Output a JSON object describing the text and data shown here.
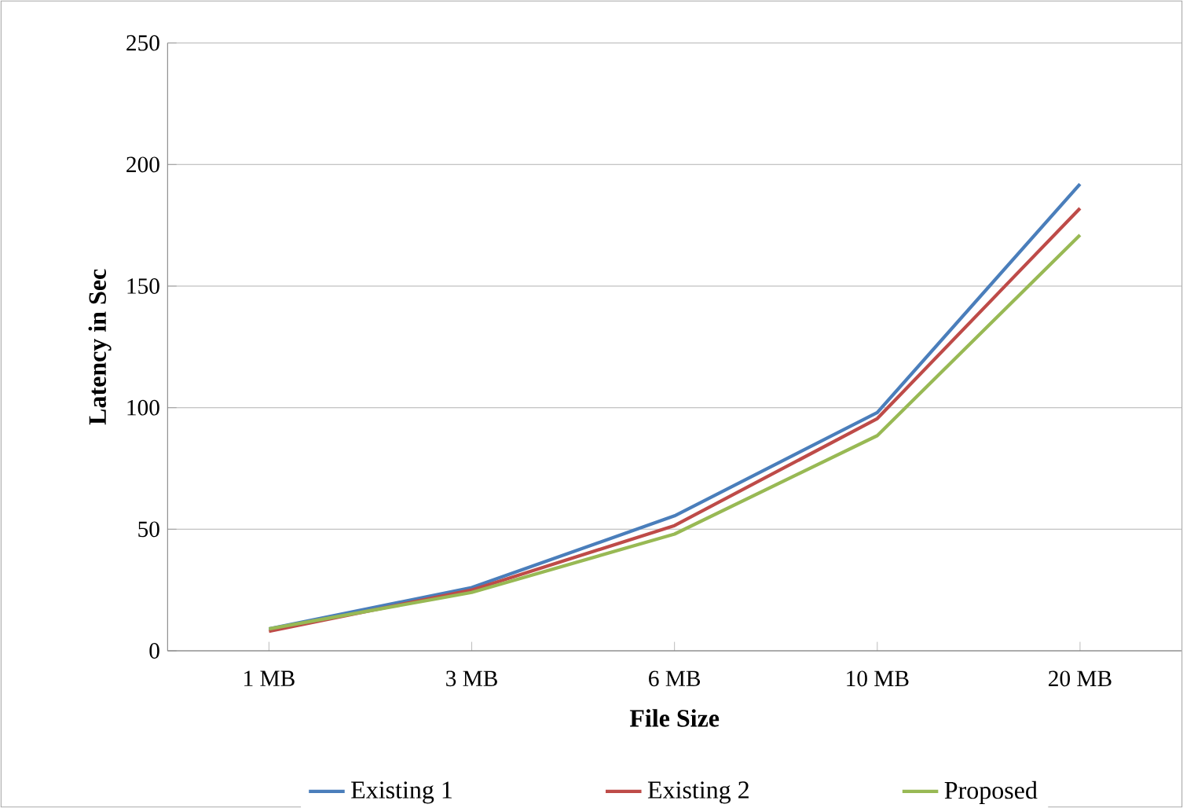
{
  "chart_data": {
    "type": "line",
    "xlabel": "File Size",
    "ylabel": "Latency in Sec",
    "categories": [
      "1 MB",
      "3 MB",
      "6 MB",
      "10 MB",
      "20 MB"
    ],
    "series": [
      {
        "name": "Existing 1",
        "color": "#4a7ebb",
        "values": [
          9,
          26,
          55.5,
          98,
          192
        ]
      },
      {
        "name": "Existing 2",
        "color": "#be4b48",
        "values": [
          8,
          25,
          51.5,
          95.5,
          182
        ]
      },
      {
        "name": "Proposed",
        "color": "#98b954",
        "values": [
          9,
          24,
          48,
          88.5,
          171
        ]
      }
    ],
    "ylim": [
      0,
      250
    ],
    "yticks": [
      0,
      50,
      100,
      150,
      200,
      250
    ],
    "grid": "y",
    "legend": "bottom",
    "marker": "none",
    "line_style": "solid"
  }
}
